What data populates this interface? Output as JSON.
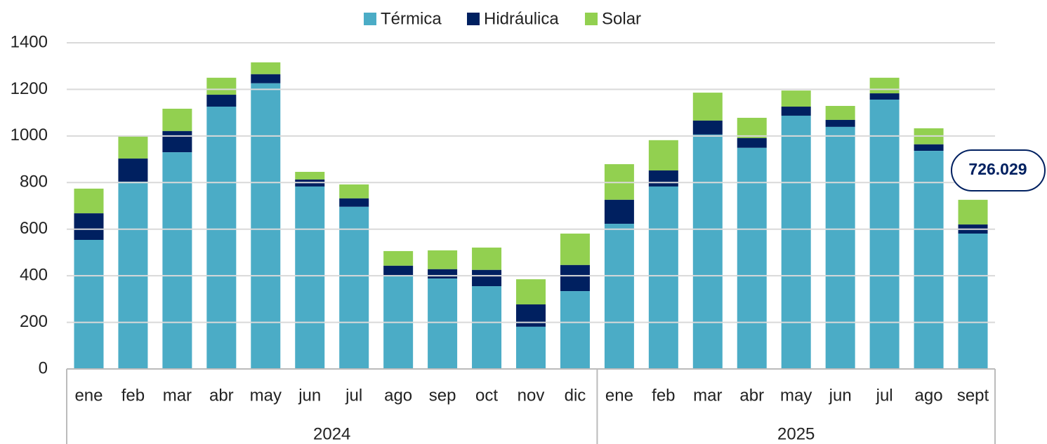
{
  "chart_data": {
    "type": "stacked_bar",
    "category_groups": [
      {
        "name": "2024",
        "categories": [
          "ene",
          "feb",
          "mar",
          "abr",
          "may",
          "jun",
          "jul",
          "ago",
          "sep",
          "oct",
          "nov",
          "dic"
        ]
      },
      {
        "name": "2025",
        "categories": [
          "ene",
          "feb",
          "mar",
          "abr",
          "may",
          "jun",
          "jul",
          "ago",
          "sept"
        ]
      }
    ],
    "series": [
      {
        "name": "Térmica",
        "color": "#4bacc6",
        "values": [
          554,
          804,
          930,
          1126,
          1226,
          783,
          696,
          400,
          388,
          355,
          181,
          334,
          623,
          783,
          1006,
          949,
          1087,
          1039,
          1156,
          936,
          581
        ]
      },
      {
        "name": "Hidráulica",
        "color": "#002060",
        "values": [
          114,
          99,
          91,
          51,
          39,
          30,
          36,
          43,
          40,
          70,
          96,
          112,
          103,
          69,
          60,
          42,
          39,
          30,
          27,
          28,
          39
        ]
      },
      {
        "name": "Solar",
        "color": "#92d050",
        "values": [
          106,
          97,
          96,
          73,
          51,
          33,
          60,
          63,
          81,
          96,
          108,
          135,
          153,
          130,
          120,
          87,
          69,
          60,
          67,
          69,
          106
        ]
      }
    ],
    "ylim": [
      0,
      1400
    ],
    "yticks": [
      0,
      200,
      400,
      600,
      800,
      1000,
      1200,
      1400
    ],
    "grid": true,
    "legend": "top",
    "annotations": [
      {
        "text": "726.029"
      }
    ]
  }
}
